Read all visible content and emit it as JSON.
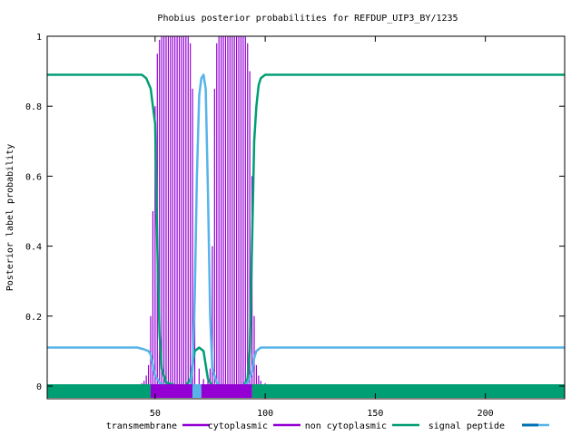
{
  "chart_data": {
    "type": "line",
    "title": "Phobius posterior probabilities for REFDUP_UIP3_BY/1235",
    "ylabel": "Posterior label probability",
    "xlabel": "",
    "xlim": [
      1,
      235
    ],
    "ylim": [
      0,
      1
    ],
    "x_ticks": [
      "50",
      "100",
      "150",
      "200"
    ],
    "y_ticks": [
      "0",
      "0.2",
      "0.4",
      "0.6",
      "0.8",
      "1"
    ],
    "legend_position": "bottom",
    "series": [
      {
        "name": "transmembrane",
        "color": "#9400d3",
        "style": "impulses",
        "points": [
          [
            40,
            0.003
          ],
          [
            42,
            0.005
          ],
          [
            44,
            0.008
          ],
          [
            45,
            0.015
          ],
          [
            46,
            0.03
          ],
          [
            47,
            0.06
          ],
          [
            48,
            0.2
          ],
          [
            49,
            0.5
          ],
          [
            50,
            0.8
          ],
          [
            51,
            0.95
          ],
          [
            52,
            0.99
          ],
          [
            53,
            1
          ],
          [
            54,
            1
          ],
          [
            55,
            1
          ],
          [
            56,
            1
          ],
          [
            57,
            1
          ],
          [
            58,
            1
          ],
          [
            59,
            1
          ],
          [
            60,
            1
          ],
          [
            61,
            1
          ],
          [
            62,
            1
          ],
          [
            63,
            1
          ],
          [
            64,
            1
          ],
          [
            65,
            1
          ],
          [
            66,
            0.98
          ],
          [
            67,
            0.85
          ],
          [
            68,
            0.3
          ],
          [
            70,
            0.05
          ],
          [
            72,
            0.02
          ],
          [
            74,
            0.02
          ],
          [
            75,
            0.05
          ],
          [
            76,
            0.4
          ],
          [
            77,
            0.85
          ],
          [
            78,
            0.98
          ],
          [
            79,
            1
          ],
          [
            80,
            1
          ],
          [
            81,
            1
          ],
          [
            82,
            1
          ],
          [
            83,
            1
          ],
          [
            84,
            1
          ],
          [
            85,
            1
          ],
          [
            86,
            1
          ],
          [
            87,
            1
          ],
          [
            88,
            1
          ],
          [
            89,
            1
          ],
          [
            90,
            1
          ],
          [
            91,
            1
          ],
          [
            92,
            0.98
          ],
          [
            93,
            0.9
          ],
          [
            94,
            0.6
          ],
          [
            95,
            0.2
          ],
          [
            96,
            0.06
          ],
          [
            97,
            0.03
          ],
          [
            98,
            0.015
          ],
          [
            100,
            0.008
          ],
          [
            104,
            0.005
          ],
          [
            110,
            0.004
          ],
          [
            120,
            0.003
          ],
          [
            130,
            0.002
          ],
          [
            140,
            0.002
          ]
        ]
      },
      {
        "name": "cytoplasmic",
        "color": "#9400d3",
        "style": "line",
        "points": [
          [
            1,
            0
          ],
          [
            236,
            0
          ]
        ]
      },
      {
        "name": "non cytoplasmic",
        "color": "#009e73",
        "style": "line",
        "points": [
          [
            1,
            0.89
          ],
          [
            44,
            0.89
          ],
          [
            46,
            0.88
          ],
          [
            48,
            0.85
          ],
          [
            49,
            0.8
          ],
          [
            50,
            0.75
          ],
          [
            51,
            0.4
          ],
          [
            52,
            0.15
          ],
          [
            53,
            0.05
          ],
          [
            55,
            0.01
          ],
          [
            60,
            0
          ],
          [
            64,
            0
          ],
          [
            66,
            0.02
          ],
          [
            67,
            0.06
          ],
          [
            68,
            0.1
          ],
          [
            70,
            0.11
          ],
          [
            72,
            0.1
          ],
          [
            73,
            0.06
          ],
          [
            74,
            0.02
          ],
          [
            76,
            0
          ],
          [
            90,
            0
          ],
          [
            92,
            0.02
          ],
          [
            93,
            0.1
          ],
          [
            94,
            0.4
          ],
          [
            95,
            0.7
          ],
          [
            96,
            0.8
          ],
          [
            97,
            0.86
          ],
          [
            98,
            0.88
          ],
          [
            100,
            0.89
          ],
          [
            236,
            0.89
          ]
        ]
      },
      {
        "name": "signal peptide",
        "color": "#56b4e9",
        "style": "line",
        "points": [
          [
            1,
            0.11
          ],
          [
            42,
            0.11
          ],
          [
            45,
            0.105
          ],
          [
            47,
            0.1
          ],
          [
            48,
            0.09
          ],
          [
            49,
            0.06
          ],
          [
            50,
            0.03
          ],
          [
            52,
            0.01
          ],
          [
            55,
            0
          ],
          [
            66,
            0
          ],
          [
            67,
            0.05
          ],
          [
            68,
            0.25
          ],
          [
            69,
            0.6
          ],
          [
            70,
            0.83
          ],
          [
            71,
            0.88
          ],
          [
            72,
            0.89
          ],
          [
            73,
            0.85
          ],
          [
            74,
            0.55
          ],
          [
            75,
            0.2
          ],
          [
            76,
            0.05
          ],
          [
            78,
            0.01
          ],
          [
            80,
            0
          ],
          [
            90,
            0
          ],
          [
            92,
            0.01
          ],
          [
            94,
            0.04
          ],
          [
            95,
            0.08
          ],
          [
            96,
            0.1
          ],
          [
            98,
            0.11
          ],
          [
            236,
            0.11
          ]
        ]
      },
      {
        "name": "",
        "color": "#0072b2",
        "style": "line",
        "points": [
          [
            1,
            0
          ],
          [
            236,
            0
          ]
        ]
      }
    ],
    "topology_bar": {
      "segments": [
        {
          "from": 1,
          "to": 48,
          "color": "#009e73"
        },
        {
          "from": 48,
          "to": 67,
          "color": "#9400d3"
        },
        {
          "from": 67,
          "to": 71,
          "color": "#56b4e9"
        },
        {
          "from": 71,
          "to": 94,
          "color": "#9400d3"
        },
        {
          "from": 94,
          "to": 236,
          "color": "#009e73"
        }
      ]
    }
  }
}
